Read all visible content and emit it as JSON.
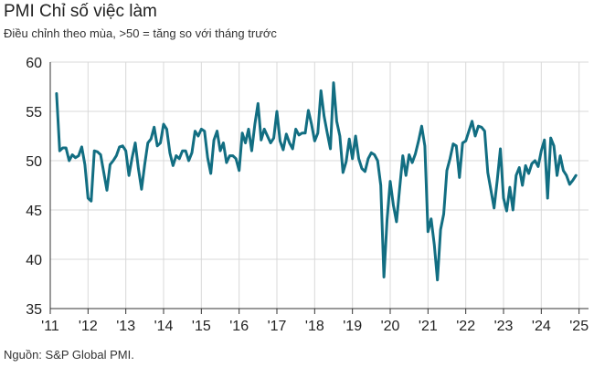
{
  "title": "PMI Chỉ số việc làm",
  "subtitle": "Điều chỉnh theo mùa, >50 = tăng so với tháng trước",
  "source": "Nguồn: S&P Global PMI.",
  "colors": {
    "line": "#126e82",
    "grid": "#d9d9d9",
    "axis": "#333333"
  },
  "chart_data": {
    "type": "line",
    "title": "PMI Chỉ số việc làm",
    "subtitle": "Điều chỉnh theo mùa, >50 = tăng so với tháng trước",
    "xlabel": "",
    "ylabel": "",
    "ylim": [
      35,
      60
    ],
    "yticks": [
      35,
      40,
      45,
      50,
      55,
      60
    ],
    "xticks": [
      {
        "label": "'11",
        "value": 2011
      },
      {
        "label": "'12",
        "value": 2012
      },
      {
        "label": "'13",
        "value": 2013
      },
      {
        "label": "'14",
        "value": 2014
      },
      {
        "label": "'15",
        "value": 2015
      },
      {
        "label": "'16",
        "value": 2016
      },
      {
        "label": "'17",
        "value": 2017
      },
      {
        "label": "'18",
        "value": 2018
      },
      {
        "label": "'19",
        "value": 2019
      },
      {
        "label": "'20",
        "value": 2020
      },
      {
        "label": "'21",
        "value": 2021
      },
      {
        "label": "'22",
        "value": 2022
      },
      {
        "label": "'23",
        "value": 2023
      },
      {
        "label": "'24",
        "value": 2024
      },
      {
        "label": "'25",
        "value": 2025
      }
    ],
    "grid": true,
    "x_start": "2011-03",
    "frequency": "monthly",
    "series": [
      {
        "values": [
          56.8,
          51.0,
          51.3,
          51.3,
          50.0,
          50.6,
          50.3,
          50.5,
          51.4,
          49.6,
          46.2,
          45.9,
          51.0,
          50.9,
          50.6,
          48.8,
          47.0,
          49.6,
          50.0,
          50.5,
          51.4,
          51.5,
          51.0,
          48.5,
          50.3,
          51.8,
          49.2,
          47.1,
          49.6,
          51.8,
          52.2,
          53.4,
          51.5,
          51.8,
          53.7,
          53.2,
          50.8,
          49.5,
          50.5,
          50.2,
          51.0,
          51.0,
          50.0,
          50.8,
          53.0,
          52.5,
          53.2,
          53.0,
          50.3,
          48.7,
          52.1,
          53.0,
          51.0,
          51.8,
          49.8,
          50.5,
          50.5,
          50.2,
          49.0,
          52.8,
          51.8,
          53.2,
          51.0,
          53.7,
          55.8,
          52.1,
          53.2,
          52.5,
          51.8,
          52.3,
          55.0,
          52.0,
          51.1,
          52.7,
          51.8,
          51.2,
          53.2,
          52.6,
          52.8,
          52.8,
          55.1,
          53.7,
          52.0,
          52.8,
          57.1,
          54.5,
          52.8,
          51.2,
          57.9,
          54.0,
          52.5,
          48.8,
          49.9,
          52.2,
          50.2,
          52.5,
          50.2,
          49.2,
          48.9,
          50.2,
          50.8,
          50.6,
          50.0,
          47.5,
          38.2,
          44.0,
          47.9,
          45.5,
          43.8,
          47.2,
          50.5,
          48.5,
          50.6,
          49.8,
          50.7,
          52.0,
          53.5,
          51.5,
          42.8,
          44.1,
          41.5,
          37.9,
          43.0,
          44.6,
          49.0,
          50.2,
          51.7,
          51.5,
          48.3,
          51.8,
          52.0,
          53.0,
          54.0,
          52.5,
          53.5,
          53.4,
          53.0,
          48.8,
          47.0,
          45.2,
          48.0,
          51.2,
          46.2,
          44.9,
          47.3,
          45.0,
          48.5,
          49.3,
          47.5,
          49.5,
          48.7,
          49.7,
          50.0,
          49.4,
          51.0,
          52.1,
          46.2,
          52.3,
          51.5,
          48.5,
          50.5,
          49.0,
          48.5,
          47.6,
          48.0,
          48.5
        ]
      }
    ]
  }
}
